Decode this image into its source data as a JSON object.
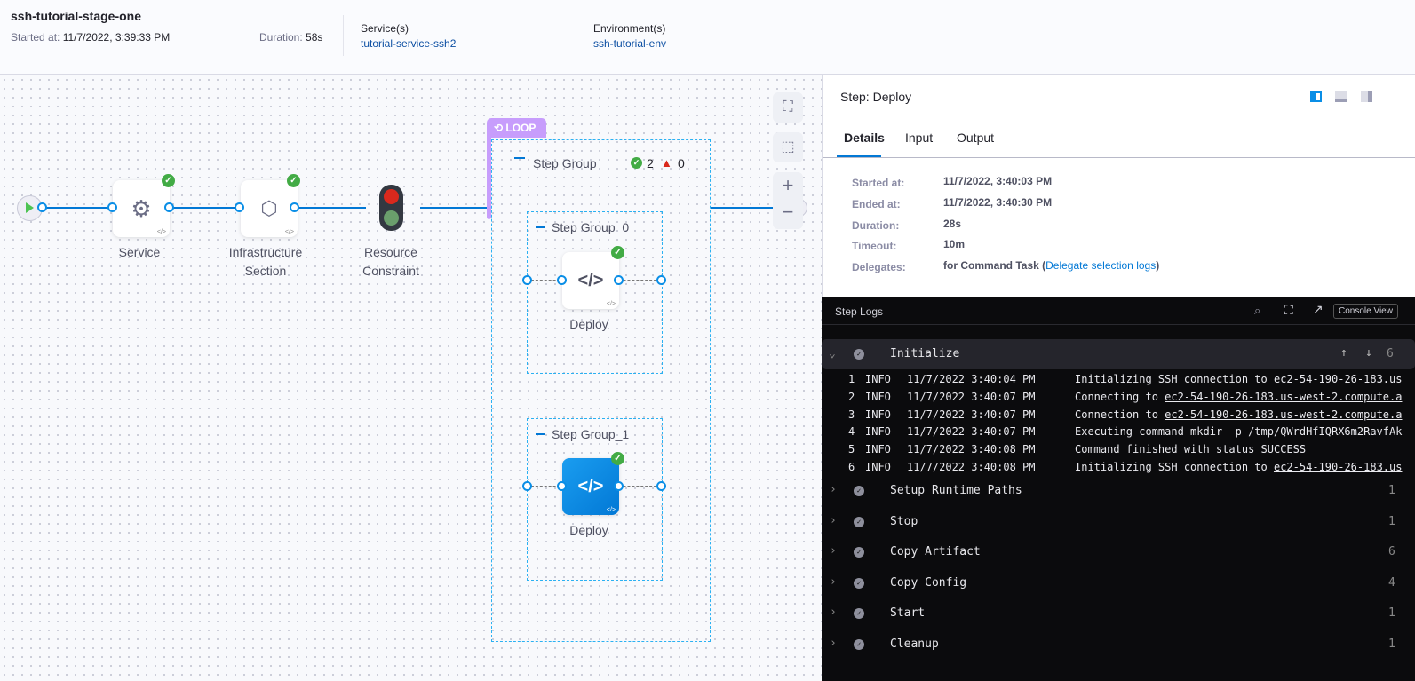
{
  "header": {
    "stage_name": "ssh-tutorial-stage-one",
    "started_label": "Started at:",
    "started_value": "11/7/2022, 3:39:33 PM",
    "duration_label": "Duration:",
    "duration_value": "58s",
    "services_label": "Service(s)",
    "service_value": "tutorial-service-ssh2",
    "env_label": "Environment(s)",
    "env_value": "ssh-tutorial-env"
  },
  "pipeline": {
    "nodes": [
      {
        "label": "Service",
        "icon": "gear-icon",
        "status": "success"
      },
      {
        "label": "Infrastructure Section",
        "icon": "hexagons-icon",
        "status": "success"
      },
      {
        "label": "Resource Constraint",
        "icon": "traffic-light-icon"
      }
    ],
    "loop_label": "LOOP",
    "step_group": {
      "label": "Step Group",
      "success_count": "2",
      "failed_count": "0"
    },
    "sub_groups": [
      {
        "label": "Step Group_0",
        "step": "Deploy",
        "status": "success"
      },
      {
        "label": "Step Group_1",
        "step": "Deploy",
        "status": "success",
        "selected": true
      }
    ]
  },
  "colors": {
    "accent": "#0278d5",
    "loop": "#c79dfc",
    "success": "#42ab45",
    "error": "#da291d"
  },
  "step_panel": {
    "title": "Step: Deploy",
    "tabs": [
      "Details",
      "Input",
      "Output"
    ],
    "active_tab": "Details",
    "details": [
      {
        "label": "Started at:",
        "value": "11/7/2022, 3:40:03 PM"
      },
      {
        "label": "Ended at:",
        "value": "11/7/2022, 3:40:30 PM"
      },
      {
        "label": "Duration:",
        "value": "28s"
      },
      {
        "label": "Timeout:",
        "value": "10m"
      },
      {
        "label": "Delegates:",
        "value": "for Command Task ("
      }
    ],
    "delegate_link": "Delegate selection logs",
    "delegate_close": ")"
  },
  "logs": {
    "title": "Step Logs",
    "console_view": "Console View",
    "initialize": {
      "name": "Initialize",
      "count": "6",
      "lines": [
        {
          "n": "1",
          "level": "INFO",
          "time": "11/7/2022 3:40:04 PM",
          "text": "Initializing SSH connection to ",
          "link": "ec2-54-190-26-183.us"
        },
        {
          "n": "2",
          "level": "INFO",
          "time": "11/7/2022 3:40:07 PM",
          "text": "Connecting to ",
          "link": "ec2-54-190-26-183.us-west-2.compute.a"
        },
        {
          "n": "3",
          "level": "INFO",
          "time": "11/7/2022 3:40:07 PM",
          "text": "Connection to ",
          "link": "ec2-54-190-26-183.us-west-2.compute.a"
        },
        {
          "n": "4",
          "level": "INFO",
          "time": "11/7/2022 3:40:07 PM",
          "text": "Executing command mkdir -p /tmp/QWrdHfIQRX6m2RavfAk",
          "link": ""
        },
        {
          "n": "5",
          "level": "INFO",
          "time": "11/7/2022 3:40:08 PM",
          "text": "Command finished with status SUCCESS",
          "link": ""
        },
        {
          "n": "6",
          "level": "INFO",
          "time": "11/7/2022 3:40:08 PM",
          "text": "Initializing SSH connection to ",
          "link": "ec2-54-190-26-183.us"
        }
      ]
    },
    "sections": [
      {
        "name": "Setup Runtime Paths",
        "count": "1"
      },
      {
        "name": "Stop",
        "count": "1"
      },
      {
        "name": "Copy Artifact",
        "count": "6"
      },
      {
        "name": "Copy Config",
        "count": "4"
      },
      {
        "name": "Start",
        "count": "1"
      },
      {
        "name": "Cleanup",
        "count": "1"
      }
    ]
  }
}
